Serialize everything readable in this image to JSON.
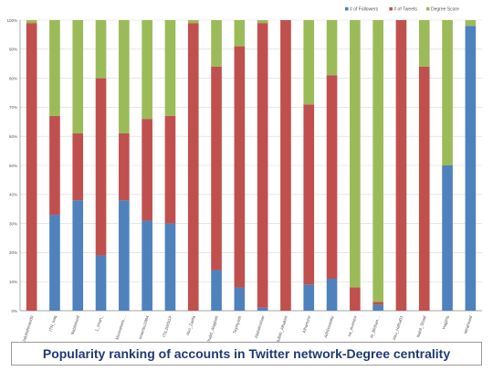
{
  "chart_data": {
    "type": "bar",
    "stacked": true,
    "percent_stacked": true,
    "categories": [
      "Abdulrahman00",
      "ITN_Iraq",
      "Nabilsherif",
      "1_Iman_",
      "Moorameis…",
      "Imambu1984",
      "ITIL1WSGP",
      "Abo_Zaafa",
      "Khalid_Alagbeh",
      "Tayinyash",
      "Abdulmohan",
      "Abdullah_Alhakim",
      "Alhartorni",
      "Adnbusaaky",
      "sa_inventor",
      "Al_Bhthan…",
      "Abu_Hafsa01",
      "Nabil_Shaal",
      "HajjiPls",
      "Mr/ahmed"
    ],
    "series": [
      {
        "name": "# of Followers",
        "color": "#4f81bd",
        "values": [
          0,
          33,
          38,
          19,
          38,
          31,
          30,
          0,
          14,
          8,
          1,
          0,
          9,
          11,
          0,
          2,
          0,
          0,
          50,
          98
        ]
      },
      {
        "name": "# of Tweets",
        "color": "#c0504d",
        "values": [
          99,
          34,
          23,
          61,
          23,
          35,
          37,
          99,
          70,
          83,
          98,
          100,
          62,
          70,
          8,
          1,
          100,
          84,
          0,
          0
        ]
      },
      {
        "name": "Degree Score",
        "color": "#9bbb59",
        "values": [
          1,
          33,
          39,
          20,
          39,
          34,
          33,
          1,
          16,
          9,
          1,
          0,
          29,
          19,
          92,
          97,
          0,
          16,
          50,
          2
        ]
      }
    ],
    "ylim": [
      0,
      100
    ],
    "yticks": [
      "0%",
      "10%",
      "20%",
      "30%",
      "40%",
      "50%",
      "60%",
      "70%",
      "80%",
      "90%",
      "100%"
    ],
    "grid": true,
    "legend": "top-right"
  },
  "caption": "Popularity ranking of accounts in Twitter network-Degree centrality"
}
